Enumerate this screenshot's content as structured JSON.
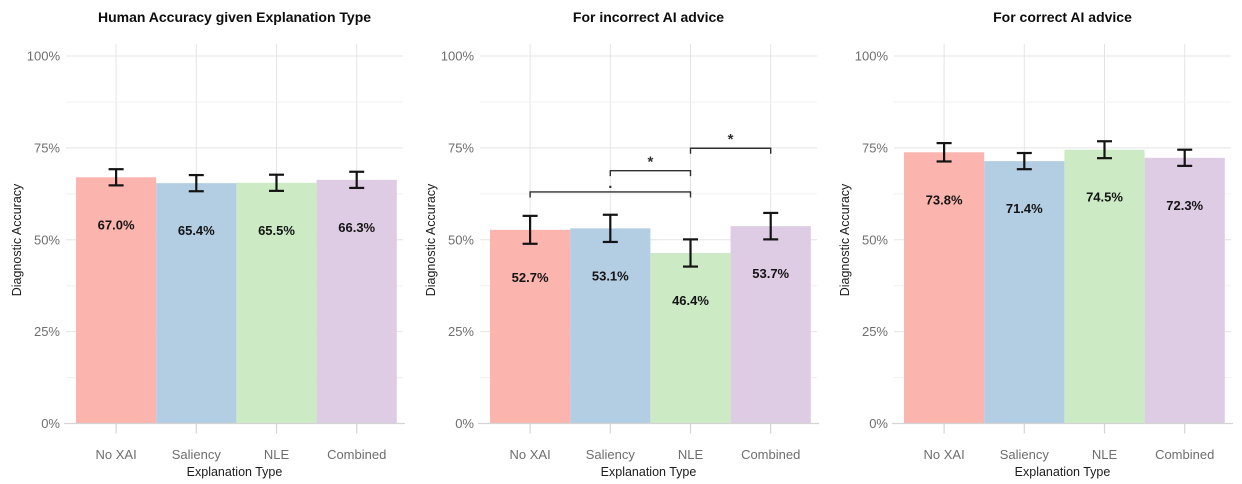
{
  "figure": {
    "kind": "three-panel-bar-figure",
    "background": "#FFFFFF",
    "shared_x_title": "Explanation Type",
    "shared_y_title": "Diagnostic Accuracy",
    "categories": [
      "No XAI",
      "Saliency",
      "NLE",
      "Combined"
    ],
    "y_tick_labels": [
      "0%",
      "25%",
      "50%",
      "75%",
      "100%"
    ]
  },
  "colors": {
    "bars": [
      "#FBB4AE",
      "#B3CDE3",
      "#CCEBC5",
      "#DECBE4"
    ],
    "grid_major": "#E4E4E4",
    "grid_minor": "#F0F0F0",
    "axis_line": "#D4D4D4",
    "tick_mark": "#D4D4D4",
    "tick_text": "#6E6E6E",
    "axis_title_text": "#1C1C1C",
    "title_text": "#0D0D0D",
    "bar_label_text": "#141414",
    "error_bar": "#141414",
    "bracket": "#2E2E2E"
  },
  "chart_data": [
    {
      "type": "bar",
      "title": "Human Accuracy given Explanation Type",
      "xlabel": "Explanation Type",
      "ylabel": "Diagnostic Accuracy",
      "categories": [
        "No XAI",
        "Saliency",
        "NLE",
        "Combined"
      ],
      "values": [
        67.0,
        65.4,
        65.5,
        66.3
      ],
      "bar_labels": [
        "67.0%",
        "65.4%",
        "65.5%",
        "66.3%"
      ],
      "error_margins": [
        2.2,
        2.2,
        2.2,
        2.2
      ],
      "ylim": [
        0,
        100
      ],
      "y_tick_values": [
        0,
        25,
        50,
        75,
        100
      ],
      "y_tick_labels": [
        "0%",
        "25%",
        "50%",
        "75%",
        "100%"
      ],
      "y_minor_values": [
        12.5,
        37.5,
        62.5,
        87.5
      ],
      "grid": "on",
      "legend": "none",
      "significance_brackets": []
    },
    {
      "type": "bar",
      "title": "For incorrect AI advice",
      "xlabel": "Explanation Type",
      "ylabel": "Diagnostic Accuracy",
      "categories": [
        "No XAI",
        "Saliency",
        "NLE",
        "Combined"
      ],
      "values": [
        52.7,
        53.1,
        46.4,
        53.7
      ],
      "bar_labels": [
        "52.7%",
        "53.1%",
        "46.4%",
        "53.7%"
      ],
      "error_margins": [
        3.8,
        3.7,
        3.7,
        3.6
      ],
      "ylim": [
        0,
        100
      ],
      "y_tick_values": [
        0,
        25,
        50,
        75,
        100
      ],
      "y_tick_labels": [
        "0%",
        "25%",
        "50%",
        "75%",
        "100%"
      ],
      "y_minor_values": [
        12.5,
        37.5,
        62.5,
        87.5
      ],
      "grid": "on",
      "legend": "none",
      "significance_brackets": [
        {
          "from_index": 0,
          "to_index": 2,
          "y_value": 63.0,
          "label": "."
        },
        {
          "from_index": 1,
          "to_index": 2,
          "y_value": 68.8,
          "label": "*"
        },
        {
          "from_index": 2,
          "to_index": 3,
          "y_value": 74.9,
          "label": "*"
        }
      ]
    },
    {
      "type": "bar",
      "title": "For correct AI advice",
      "xlabel": "Explanation Type",
      "ylabel": "Diagnostic Accuracy",
      "categories": [
        "No XAI",
        "Saliency",
        "NLE",
        "Combined"
      ],
      "values": [
        73.8,
        71.4,
        74.5,
        72.3
      ],
      "bar_labels": [
        "73.8%",
        "71.4%",
        "74.5%",
        "72.3%"
      ],
      "error_margins": [
        2.5,
        2.2,
        2.3,
        2.2
      ],
      "ylim": [
        0,
        100
      ],
      "y_tick_values": [
        0,
        25,
        50,
        75,
        100
      ],
      "y_tick_labels": [
        "0%",
        "25%",
        "50%",
        "75%",
        "100%"
      ],
      "y_minor_values": [
        12.5,
        37.5,
        62.5,
        87.5
      ],
      "grid": "on",
      "legend": "none",
      "significance_brackets": []
    }
  ]
}
